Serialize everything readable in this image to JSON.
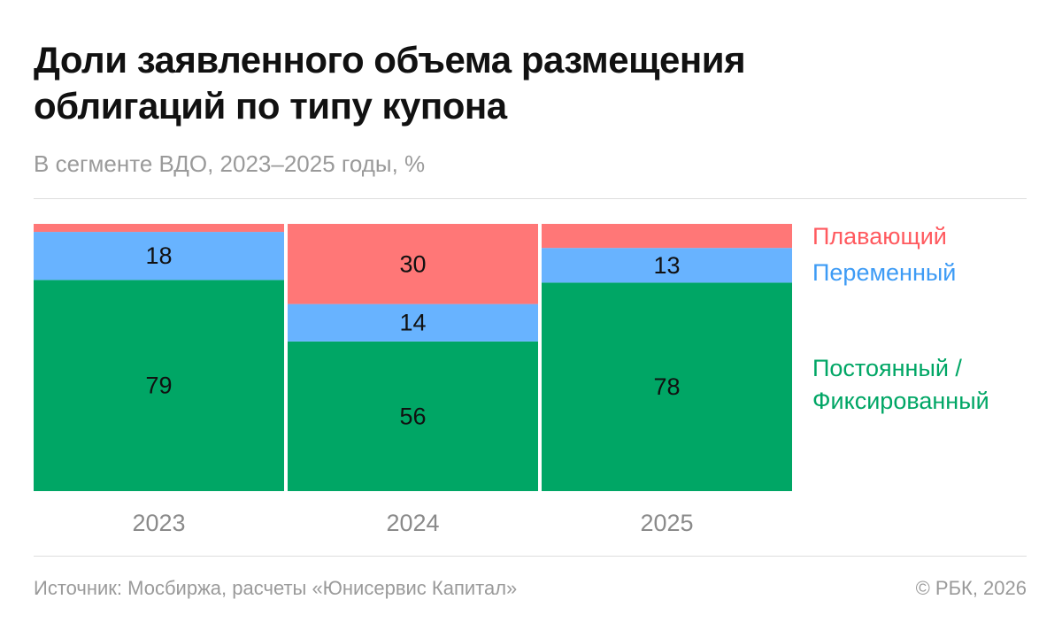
{
  "title": "Доли заявленного объема размещения облигаций по типу купона",
  "subtitle": "В сегменте ВДО, 2023–2025 годы, %",
  "source": "Источник: Мосбиржа, расчеты «Юнисервис Капитал»",
  "copyright": "© РБК, 2026",
  "chart_data": {
    "type": "bar",
    "stacked": true,
    "categories": [
      "2023",
      "2024",
      "2025"
    ],
    "ylim": [
      0,
      100
    ],
    "grid": false,
    "legend_position": "right",
    "series": [
      {
        "name": "Постоянный / Фиксированный",
        "values": [
          79,
          56,
          78
        ],
        "labels": [
          "79",
          "56",
          "78"
        ],
        "color": "#00A665",
        "legend_color": "#00A665"
      },
      {
        "name": "Переменный",
        "values": [
          18,
          14,
          13
        ],
        "labels": [
          "18",
          "14",
          "13"
        ],
        "color": "#68B3FF",
        "legend_color": "#3D9BF5"
      },
      {
        "name": "Плавающий",
        "values": [
          3,
          30,
          9
        ],
        "labels": [
          "",
          "30",
          ""
        ],
        "color": "#FF7777",
        "legend_color": "#FF5A5F"
      }
    ]
  }
}
